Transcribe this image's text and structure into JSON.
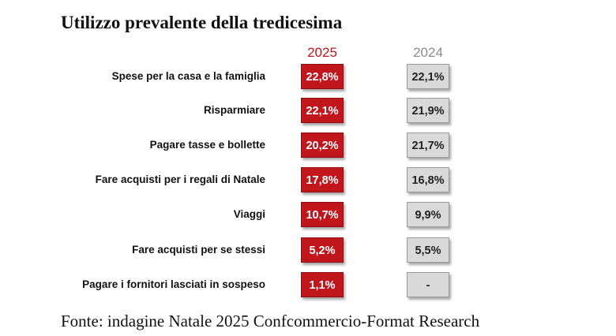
{
  "chart_data": {
    "type": "table",
    "title": "Utilizzo prevalente della tredicesima",
    "series": [
      {
        "name": "2025",
        "color": "#c0161c",
        "values": [
          "22,8%",
          "22,1%",
          "20,2%",
          "17,8%",
          "10,7%",
          "5,2%",
          "1,1%"
        ]
      },
      {
        "name": "2024",
        "color": "#d9d9d9",
        "values": [
          "22,1%",
          "21,9%",
          "21,7%",
          "16,8%",
          "9,9%",
          "5,5%",
          "-"
        ]
      }
    ],
    "categories": [
      "Spese per la casa e la famiglia",
      "Risparmiare",
      "Pagare tasse e bollette",
      "Fare acquisti per i regali di Natale",
      "Viaggi",
      "Fare acquisti per se stessi",
      "Pagare i fornitori lasciati in sospeso"
    ],
    "source": "Fonte: indagine Natale 2025 Confcommercio-Format Research"
  }
}
